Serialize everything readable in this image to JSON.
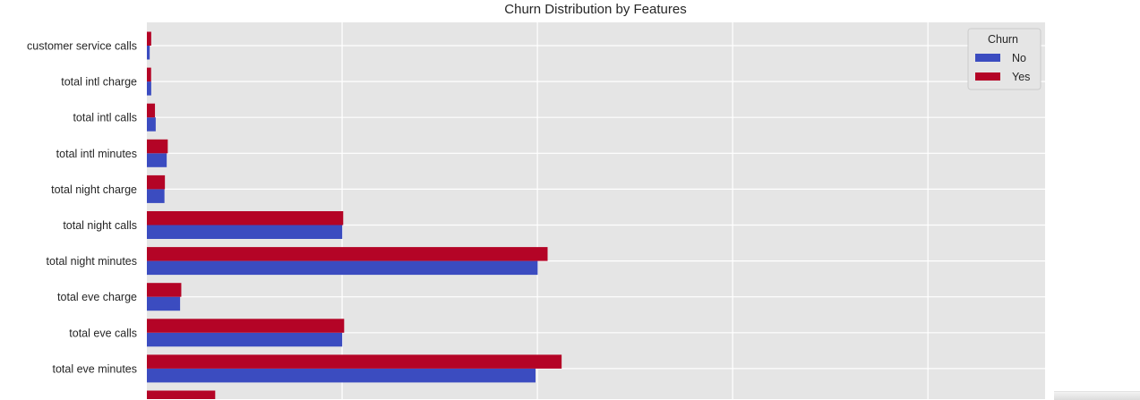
{
  "chart_data": {
    "type": "bar",
    "orientation": "horizontal",
    "title": "Churn Distribution by Features",
    "categories": [
      "customer service calls",
      "total intl charge",
      "total intl calls",
      "total intl minutes",
      "total night charge",
      "total night calls",
      "total night minutes",
      "total eve charge",
      "total eve calls",
      "total eve minutes",
      ""
    ],
    "series": [
      {
        "name": "No",
        "color": "#3b4cc0",
        "values": [
          1.45,
          2.23,
          4.53,
          10.16,
          9.01,
          100.06,
          200.13,
          17.02,
          100.04,
          199.04,
          null
        ]
      },
      {
        "name": "Yes",
        "color": "#b40426",
        "values": [
          2.23,
          2.17,
          4.15,
          10.7,
          9.24,
          100.56,
          205.23,
          17.63,
          101.04,
          212.41,
          35
        ]
      }
    ],
    "xlim": [
      0,
      460
    ],
    "grid": true,
    "legend": {
      "title": "Churn",
      "position": "top-right"
    }
  }
}
